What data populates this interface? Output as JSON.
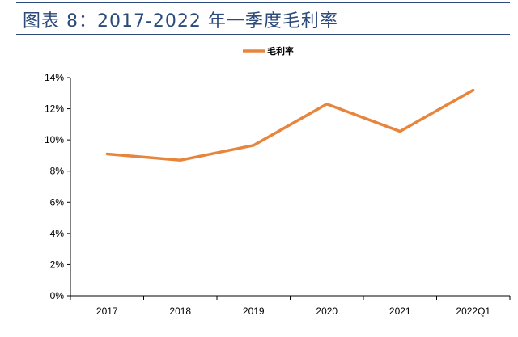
{
  "title": "图表 8：2017-2022 年一季度毛利率",
  "colors": {
    "line": "#e8853d",
    "title": "#2c4a7a"
  },
  "chart_data": {
    "type": "line",
    "title": "",
    "xlabel": "",
    "ylabel": "",
    "categories": [
      "2017",
      "2018",
      "2019",
      "2020",
      "2021",
      "2022Q1"
    ],
    "series": [
      {
        "name": "毛利率",
        "values": [
          9.1,
          8.7,
          9.65,
          12.3,
          10.55,
          13.2
        ]
      }
    ],
    "ylim": [
      0,
      14
    ],
    "yticks": [
      0,
      2,
      4,
      6,
      8,
      10,
      12,
      14
    ],
    "ytick_labels": [
      "0%",
      "2%",
      "4%",
      "6%",
      "8%",
      "10%",
      "12%",
      "14%"
    ],
    "grid": false,
    "legend_position": "top-center"
  }
}
